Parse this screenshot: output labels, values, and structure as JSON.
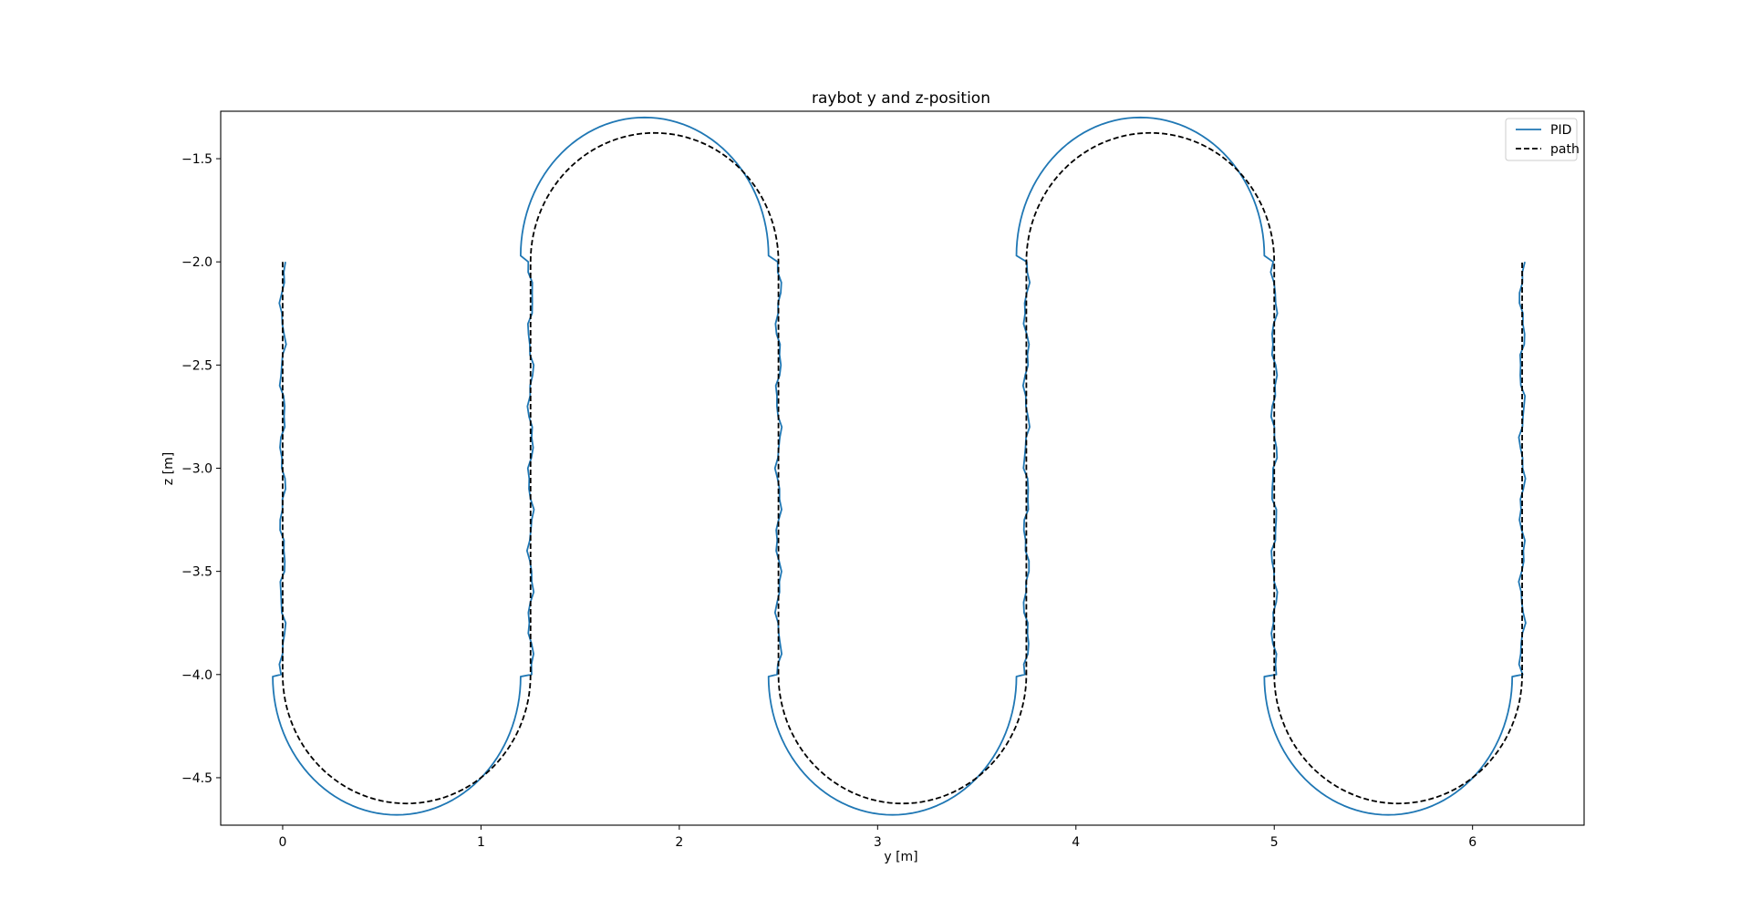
{
  "chart_data": {
    "type": "line",
    "title": "raybot y and z-position",
    "xlabel": "y [m]",
    "ylabel": "z [m]",
    "xlim": [
      -0.3125,
      6.5625
    ],
    "ylim": [
      -4.73,
      -1.27
    ],
    "xticks": [
      0,
      1,
      2,
      3,
      4,
      5,
      6
    ],
    "xtick_labels": [
      "0",
      "1",
      "2",
      "3",
      "4",
      "5",
      "6"
    ],
    "yticks": [
      -1.5,
      -2.0,
      -2.5,
      -3.0,
      -3.5,
      -4.0,
      -4.5
    ],
    "ytick_labels": [
      "−1.5",
      "−2.0",
      "−2.5",
      "−3.0",
      "−3.5",
      "−4.0",
      "−4.5"
    ],
    "grid": false,
    "legend_position": "top-right",
    "series": [
      {
        "name": "PID",
        "color": "#1f77b4",
        "style": "solid",
        "path": {
          "straight_z_top": -2.0,
          "straight_z_bottom": -4.0,
          "lane_y": [
            0,
            1.25,
            2.5,
            3.75,
            5.0,
            6.25
          ],
          "arc_radius": 0.67,
          "arc_center_z_top": -1.97,
          "arc_center_z_bottom": -4.01,
          "arc_center_y_shift": -0.05,
          "wiggle_amplitude": 0.012,
          "end_z": -2.0
        }
      },
      {
        "name": "path",
        "color": "#000000",
        "style": "dashed",
        "path": {
          "straight_z_top": -2.0,
          "straight_z_bottom": -4.0,
          "lane_y": [
            0,
            1.25,
            2.5,
            3.75,
            5.0,
            6.25
          ],
          "arc_radius": 0.625,
          "arc_center_z_top": -2.0,
          "arc_center_z_bottom": -4.0,
          "arc_center_y_shift": 0,
          "wiggle_amplitude": 0,
          "end_z": -2.0
        }
      }
    ]
  }
}
